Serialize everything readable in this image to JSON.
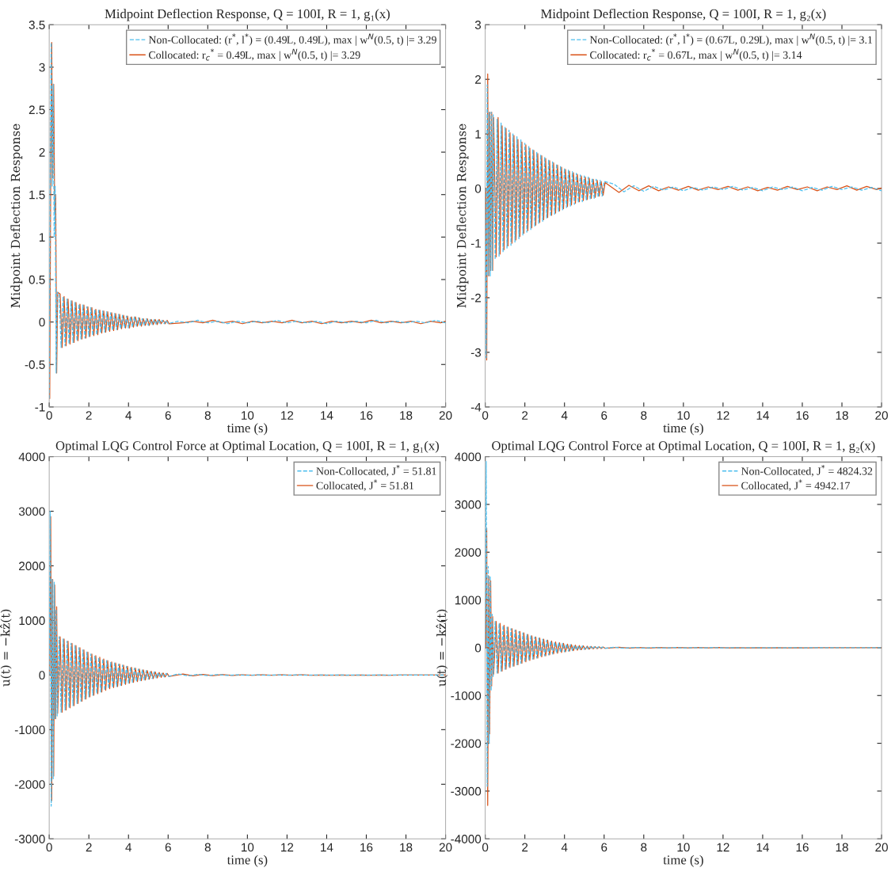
{
  "chart_data": [
    {
      "type": "line",
      "title": "Midpoint Deflection Response, Q = 100I, R = 1, g₁(x)",
      "xlabel": "time (s)",
      "ylabel": "Midpoint Deflection Response",
      "xlim": [
        0,
        20
      ],
      "ylim": [
        -1,
        3.5
      ],
      "xticks": [
        0,
        2,
        4,
        6,
        8,
        10,
        12,
        14,
        16,
        18,
        20
      ],
      "yticks": [
        -1,
        -0.5,
        0,
        0.5,
        1,
        1.5,
        2,
        2.5,
        3,
        3.5
      ],
      "legend": "top right",
      "x": [
        0,
        0.05,
        0.1,
        0.15,
        0.2,
        0.25,
        0.3,
        0.35,
        0.4,
        0.5,
        0.6,
        0.7,
        0.8,
        0.9,
        1,
        1.1,
        1.2,
        1.3,
        1.4,
        1.5,
        1.6,
        1.7,
        1.8,
        1.9,
        2,
        2.1,
        2.2,
        2.3,
        2.4,
        2.5,
        2.6,
        2.7,
        2.8,
        2.9,
        3,
        3.1,
        3.2,
        3.3,
        3.4,
        3.5,
        3.6,
        3.7,
        3.8,
        3.9,
        4,
        4.1,
        4.2,
        4.3,
        4.4,
        4.5,
        4.6,
        4.7,
        4.8,
        4.9,
        5,
        5.1,
        5.2,
        5.3,
        5.4,
        5.5,
        5.6,
        5.7,
        5.8,
        5.9,
        6,
        6.5,
        7,
        7.5,
        8,
        8.5,
        9,
        9.5,
        10,
        10.5,
        11,
        11.5,
        12,
        12.5,
        13,
        13.5,
        14,
        14.5,
        15,
        15.5,
        16,
        16.5,
        17,
        17.5,
        18,
        18.5,
        19,
        19.5,
        20
      ],
      "series": [
        {
          "name": "Non-Collocated: (r$^{*}$, l$^{*}$) = (0.49L, 0.49L), max | w$^{N}$(0.5, t) |= 3.29",
          "color": "#4dbeee",
          "line_style": "dashed",
          "values": [
            -0.9,
            1.7,
            3.29,
            1.6,
            2.8,
            1.0,
            1.6,
            -0.6,
            0.35,
            0.33,
            -0.3,
            0.3,
            -0.28,
            0.27,
            -0.26,
            0.25,
            -0.24,
            0.23,
            -0.22,
            0.21,
            -0.2,
            0.2,
            -0.19,
            0.18,
            -0.17,
            0.17,
            -0.16,
            0.15,
            -0.15,
            0.14,
            -0.13,
            0.13,
            -0.12,
            0.12,
            -0.11,
            0.11,
            -0.1,
            0.1,
            -0.09,
            0.09,
            -0.08,
            0.08,
            -0.07,
            0.07,
            -0.07,
            0.06,
            -0.06,
            0.06,
            -0.05,
            0.05,
            -0.05,
            0.04,
            -0.04,
            0.04,
            -0.04,
            0.03,
            -0.03,
            0.03,
            -0.03,
            0.03,
            -0.02,
            0.02,
            -0.02,
            0.02,
            -0.02,
            0.01,
            -0.01,
            0.02,
            -0.01,
            0.01,
            -0.02,
            0.01,
            -0.01,
            0.01,
            -0.01,
            0.02,
            -0.01,
            0.01,
            -0.01,
            0.01,
            -0.02,
            0.01,
            -0.01,
            0.01,
            -0.01,
            0.02,
            -0.01,
            0.01,
            -0.01,
            0.01,
            -0.01,
            0.02,
            -0.01
          ]
        },
        {
          "name": "Collocated: r$_{c}$$^{*}$ = 0.49L, max | w$^{N}$(0.5, t) |= 3.29",
          "color": "#d95319",
          "line_style": "solid",
          "x": [
            0.025,
            0.075,
            0.125,
            0.175,
            0.225,
            0.275,
            0.325,
            0.375,
            0.425,
            0.55,
            0.65,
            0.75,
            0.85,
            0.95,
            1.05,
            1.15,
            1.25,
            1.35,
            1.45,
            1.55,
            1.65,
            1.75,
            1.85,
            1.95,
            2.05,
            2.15,
            2.25,
            2.35,
            2.45,
            2.55,
            2.65,
            2.75,
            2.85,
            2.95,
            3.05,
            3.15,
            3.25,
            3.35,
            3.45,
            3.55,
            3.65,
            3.75,
            3.85,
            3.95,
            4.05,
            4.15,
            4.25,
            4.35,
            4.45,
            4.55,
            4.65,
            4.75,
            4.85,
            4.95,
            5.05,
            5.15,
            5.25,
            5.35,
            5.45,
            5.55,
            5.65,
            5.75,
            5.85,
            5.95,
            6.05,
            6.75,
            7.25,
            7.75,
            8.25,
            8.75,
            9.25,
            9.75,
            10.25,
            10.75,
            11.25,
            11.75,
            12.25,
            12.75,
            13.25,
            13.75,
            14.25,
            14.75,
            15.25,
            15.75,
            16.25,
            16.75,
            17.25,
            17.75,
            18.25,
            18.75,
            19.25,
            19.75,
            20
          ],
          "values": [
            -0.9,
            1.7,
            3.29,
            1.7,
            2.8,
            1.3,
            1.5,
            -0.6,
            0.35,
            0.33,
            -0.3,
            0.3,
            -0.28,
            0.27,
            -0.26,
            0.25,
            -0.24,
            0.23,
            -0.22,
            0.21,
            -0.2,
            0.2,
            -0.19,
            0.18,
            -0.17,
            0.17,
            -0.16,
            0.15,
            -0.15,
            0.14,
            -0.13,
            0.13,
            -0.12,
            0.12,
            -0.11,
            0.11,
            -0.1,
            0.1,
            -0.09,
            0.09,
            -0.08,
            0.08,
            -0.07,
            0.07,
            -0.07,
            0.06,
            -0.06,
            0.06,
            -0.05,
            0.05,
            -0.05,
            0.04,
            -0.04,
            0.04,
            -0.04,
            0.03,
            -0.03,
            0.03,
            -0.03,
            0.03,
            -0.02,
            0.02,
            -0.02,
            0.02,
            -0.02,
            -0.01,
            0.01,
            -0.01,
            0.02,
            -0.01,
            0.01,
            -0.02,
            0.01,
            -0.01,
            0.01,
            -0.01,
            0.02,
            -0.01,
            0.01,
            -0.02,
            0.01,
            -0.01,
            0.01,
            -0.01,
            0.02,
            -0.01,
            0.01,
            -0.01,
            0.01,
            -0.02,
            0.01,
            -0.01,
            0.01
          ]
        }
      ]
    },
    {
      "type": "line",
      "title": "Midpoint Deflection Response, Q = 100I, R = 1, g₂(x)",
      "xlabel": "time (s)",
      "ylabel": "Midpoint Deflection Response",
      "xlim": [
        0,
        20
      ],
      "ylim": [
        -4,
        3
      ],
      "xticks": [
        0,
        2,
        4,
        6,
        8,
        10,
        12,
        14,
        16,
        18,
        20
      ],
      "yticks": [
        -4,
        -3,
        -2,
        -1,
        0,
        1,
        2,
        3
      ],
      "legend": "top right",
      "x": [
        0,
        0.05,
        0.1,
        0.15,
        0.2,
        0.25,
        0.3,
        0.35,
        0.4,
        0.5,
        0.6,
        0.7,
        0.8,
        0.9,
        1,
        1.1,
        1.2,
        1.3,
        1.4,
        1.5,
        1.6,
        1.7,
        1.8,
        1.9,
        2,
        2.1,
        2.2,
        2.3,
        2.4,
        2.5,
        2.6,
        2.7,
        2.8,
        2.9,
        3,
        3.1,
        3.2,
        3.3,
        3.4,
        3.5,
        3.6,
        3.7,
        3.8,
        3.9,
        4,
        4.1,
        4.2,
        4.3,
        4.4,
        4.5,
        4.6,
        4.7,
        4.8,
        4.9,
        5,
        5.1,
        5.2,
        5.3,
        5.4,
        5.5,
        5.6,
        5.7,
        5.8,
        5.9,
        6,
        6.5,
        7,
        7.5,
        8,
        8.5,
        9,
        9.5,
        10,
        10.5,
        11,
        11.5,
        12,
        12.5,
        13,
        13.5,
        14,
        14.5,
        15,
        15.5,
        16,
        16.5,
        17,
        17.5,
        18,
        18.5,
        19,
        19.5,
        20
      ],
      "series": [
        {
          "name": "Non-Collocated: (r$^{*}$, l$^{*}$) = (0.67L, 0.29L), max | w$^{N}$(0.5, t) |= 3.1",
          "color": "#4dbeee",
          "line_style": "dashed",
          "values": [
            0,
            -3.1,
            1.9,
            -1.6,
            1.4,
            -1.6,
            1.4,
            -1.5,
            1.35,
            -1.3,
            1.27,
            -1.24,
            1.2,
            -1.17,
            1.12,
            -1.1,
            1.07,
            -1.04,
            1.0,
            -0.98,
            0.95,
            -0.92,
            0.89,
            -0.86,
            0.83,
            -0.8,
            0.78,
            -0.75,
            0.72,
            -0.7,
            0.67,
            -0.65,
            0.62,
            -0.6,
            0.58,
            -0.55,
            0.53,
            -0.51,
            0.49,
            -0.47,
            0.45,
            -0.43,
            0.41,
            -0.39,
            0.37,
            -0.35,
            0.34,
            -0.32,
            0.31,
            -0.29,
            0.28,
            -0.26,
            0.25,
            -0.24,
            0.23,
            -0.22,
            0.21,
            -0.2,
            0.19,
            -0.18,
            0.17,
            -0.16,
            0.15,
            -0.14,
            0.13,
            0.08,
            -0.06,
            0.05,
            -0.05,
            0.04,
            -0.03,
            0.03,
            -0.04,
            0.02,
            -0.03,
            0.03,
            -0.02,
            0.04,
            -0.03,
            0.02,
            -0.04,
            0.03,
            -0.02,
            0.03,
            -0.04,
            0.02,
            -0.03,
            0.04,
            -0.02,
            0.03,
            -0.03,
            0.02,
            -0.04
          ]
        },
        {
          "name": "Collocated: r$_{c}$$^{*}$ = 0.67L, max | w$^{N}$(0.5, t) |= 3.14",
          "color": "#d95319",
          "line_style": "solid",
          "x": [
            0.025,
            0.075,
            0.125,
            0.175,
            0.225,
            0.275,
            0.325,
            0.375,
            0.425,
            0.55,
            0.65,
            0.75,
            0.85,
            0.95,
            1.05,
            1.15,
            1.25,
            1.35,
            1.45,
            1.55,
            1.65,
            1.75,
            1.85,
            1.95,
            2.05,
            2.15,
            2.25,
            2.35,
            2.45,
            2.55,
            2.65,
            2.75,
            2.85,
            2.95,
            3.05,
            3.15,
            3.25,
            3.35,
            3.45,
            3.55,
            3.65,
            3.75,
            3.85,
            3.95,
            4.05,
            4.15,
            4.25,
            4.35,
            4.45,
            4.55,
            4.65,
            4.75,
            4.85,
            4.95,
            5.05,
            5.15,
            5.25,
            5.35,
            5.45,
            5.55,
            5.65,
            5.75,
            5.85,
            5.95,
            6.05,
            6.75,
            7.25,
            7.75,
            8.25,
            8.75,
            9.25,
            9.75,
            10.25,
            10.75,
            11.25,
            11.75,
            12.25,
            12.75,
            13.25,
            13.75,
            14.25,
            14.75,
            15.25,
            15.75,
            16.25,
            16.75,
            17.25,
            17.75,
            18.25,
            18.75,
            19.25,
            19.75,
            20
          ],
          "values": [
            0,
            -3.14,
            2.1,
            -1.6,
            1.4,
            -1.5,
            1.4,
            -1.5,
            1.3,
            -1.25,
            1.3,
            -1.2,
            1.15,
            -1.12,
            1.1,
            -1.05,
            1.02,
            -1.0,
            0.97,
            -0.94,
            0.9,
            -0.88,
            0.85,
            -0.82,
            0.8,
            -0.77,
            0.74,
            -0.72,
            0.7,
            -0.67,
            0.64,
            -0.62,
            0.6,
            -0.57,
            0.55,
            -0.53,
            0.51,
            -0.49,
            0.47,
            -0.45,
            0.43,
            -0.41,
            0.39,
            -0.37,
            0.35,
            -0.33,
            0.32,
            -0.3,
            0.29,
            -0.27,
            0.26,
            -0.24,
            0.23,
            -0.22,
            0.21,
            -0.2,
            0.19,
            -0.18,
            0.17,
            -0.16,
            0.15,
            -0.14,
            0.13,
            -0.12,
            0.11,
            -0.07,
            0.06,
            -0.04,
            0.05,
            -0.04,
            0.03,
            -0.03,
            0.04,
            -0.03,
            0.03,
            -0.02,
            0.04,
            -0.03,
            0.03,
            -0.04,
            0.02,
            -0.03,
            0.04,
            -0.02,
            0.03,
            -0.04,
            0.03,
            -0.02,
            0.05,
            -0.03,
            0.04,
            -0.02,
            0.01
          ]
        }
      ]
    },
    {
      "type": "line",
      "title": "Optimal LQG Control Force at Optimal Location, Q = 100I, R = 1, g₁(x)",
      "xlabel": "time (s)",
      "ylabel": "u(t) = −kẑ(t)",
      "xlim": [
        0,
        20
      ],
      "ylim": [
        -3000,
        4000
      ],
      "xticks": [
        0,
        2,
        4,
        6,
        8,
        10,
        12,
        14,
        16,
        18,
        20
      ],
      "yticks": [
        -3000,
        -2000,
        -1000,
        0,
        1000,
        2000,
        3000,
        4000
      ],
      "legend": "top right",
      "x": [
        0,
        0.05,
        0.1,
        0.15,
        0.2,
        0.25,
        0.3,
        0.35,
        0.4,
        0.5,
        0.6,
        0.7,
        0.8,
        0.9,
        1,
        1.1,
        1.2,
        1.3,
        1.4,
        1.5,
        1.6,
        1.7,
        1.8,
        1.9,
        2,
        2.1,
        2.2,
        2.3,
        2.4,
        2.5,
        2.6,
        2.7,
        2.8,
        2.9,
        3,
        3.1,
        3.2,
        3.3,
        3.4,
        3.5,
        3.6,
        3.7,
        3.8,
        3.9,
        4,
        4.1,
        4.2,
        4.3,
        4.4,
        4.5,
        4.6,
        4.7,
        4.8,
        4.9,
        5,
        5.1,
        5.2,
        5.3,
        5.4,
        5.5,
        5.6,
        5.7,
        5.8,
        5.9,
        6,
        6.5,
        7,
        7.5,
        8,
        8.5,
        9,
        9.5,
        10,
        10.5,
        11,
        11.5,
        12,
        12.5,
        13,
        13.5,
        14,
        14.5,
        15,
        15.5,
        16,
        16.5,
        17,
        17.5,
        18,
        18.5,
        19,
        19.5,
        20
      ],
      "series": [
        {
          "name": "Non-Collocated, J$^{*}$ = 51.81",
          "color": "#4dbeee",
          "line_style": "dashed",
          "values": [
            0,
            3000,
            -2400,
            1750,
            -1900,
            1700,
            -800,
            1200,
            -750,
            700,
            -680,
            660,
            -640,
            620,
            -600,
            580,
            -560,
            540,
            -520,
            500,
            -480,
            460,
            -440,
            420,
            -400,
            385,
            -370,
            355,
            -340,
            325,
            -310,
            295,
            -280,
            265,
            -250,
            240,
            -230,
            220,
            -210,
            200,
            -190,
            180,
            -170,
            160,
            -150,
            142,
            -134,
            126,
            -118,
            110,
            -103,
            96,
            -89,
            82,
            -76,
            70,
            -64,
            58,
            -52,
            47,
            -42,
            38,
            -34,
            30,
            -26,
            20,
            -15,
            12,
            -10,
            8,
            -6,
            5,
            -5,
            4,
            -4,
            3,
            -3,
            3,
            -3,
            2,
            -2,
            2,
            -2,
            2,
            -2,
            2,
            -2,
            1,
            -1,
            1,
            -1,
            1,
            -1
          ]
        },
        {
          "name": "Collocated, J$^{*}$ = 51.81",
          "color": "#d95319",
          "line_style": "solid",
          "x": [
            0.025,
            0.075,
            0.125,
            0.175,
            0.225,
            0.275,
            0.325,
            0.375,
            0.425,
            0.55,
            0.65,
            0.75,
            0.85,
            0.95,
            1.05,
            1.15,
            1.25,
            1.35,
            1.45,
            1.55,
            1.65,
            1.75,
            1.85,
            1.95,
            2.05,
            2.15,
            2.25,
            2.35,
            2.45,
            2.55,
            2.65,
            2.75,
            2.85,
            2.95,
            3.05,
            3.15,
            3.25,
            3.35,
            3.45,
            3.55,
            3.65,
            3.75,
            3.85,
            3.95,
            4.05,
            4.15,
            4.25,
            4.35,
            4.45,
            4.55,
            4.65,
            4.75,
            4.85,
            4.95,
            5.05,
            5.15,
            5.25,
            5.35,
            5.45,
            5.55,
            5.65,
            5.75,
            5.85,
            5.95,
            6.05,
            6.75,
            7.25,
            7.75,
            8.25,
            8.75,
            9.25,
            9.75,
            10.25,
            10.75,
            11.25,
            11.75,
            12.25,
            12.75,
            13.25,
            13.75,
            14.25,
            14.75,
            15.25,
            15.75,
            16.25,
            16.75,
            17.25,
            17.75,
            18.25,
            18.75,
            19.25,
            19.75,
            20
          ],
          "values": [
            0,
            2900,
            -2300,
            1750,
            -1850,
            1650,
            -800,
            1250,
            -700,
            700,
            -680,
            660,
            -640,
            620,
            -600,
            580,
            -560,
            540,
            -520,
            500,
            -480,
            460,
            -440,
            420,
            -400,
            385,
            -370,
            355,
            -340,
            325,
            -310,
            295,
            -280,
            265,
            -250,
            240,
            -230,
            220,
            -210,
            200,
            -190,
            180,
            -170,
            160,
            -150,
            142,
            -134,
            126,
            -118,
            110,
            -103,
            96,
            -89,
            82,
            -76,
            70,
            -64,
            58,
            -52,
            47,
            -42,
            38,
            -34,
            30,
            -26,
            20,
            -15,
            12,
            -10,
            8,
            -6,
            5,
            -5,
            4,
            -4,
            3,
            -3,
            3,
            -3,
            2,
            -2,
            2,
            -2,
            2,
            -2,
            2,
            -2,
            1,
            -1,
            1,
            -1,
            1,
            -1
          ]
        }
      ]
    },
    {
      "type": "line",
      "title": "Optimal LQG Control Force at Optimal Location, Q = 100I, R = 1, g₂(x)",
      "xlabel": "time (s)",
      "ylabel": "u(t) = −kẑ(t)",
      "xlim": [
        0,
        20
      ],
      "ylim": [
        -4000,
        4000
      ],
      "xticks": [
        0,
        2,
        4,
        6,
        8,
        10,
        12,
        14,
        16,
        18,
        20
      ],
      "yticks": [
        -4000,
        -3000,
        -2000,
        -1000,
        0,
        1000,
        2000,
        3000,
        4000
      ],
      "legend": "top right",
      "x": [
        0,
        0.05,
        0.1,
        0.15,
        0.2,
        0.25,
        0.3,
        0.35,
        0.4,
        0.5,
        0.6,
        0.7,
        0.8,
        0.9,
        1,
        1.1,
        1.2,
        1.3,
        1.4,
        1.5,
        1.6,
        1.7,
        1.8,
        1.9,
        2,
        2.1,
        2.2,
        2.3,
        2.4,
        2.5,
        2.6,
        2.7,
        2.8,
        2.9,
        3,
        3.1,
        3.2,
        3.3,
        3.4,
        3.5,
        3.6,
        3.7,
        3.8,
        3.9,
        4,
        4.1,
        4.2,
        4.3,
        4.4,
        4.5,
        4.6,
        4.7,
        4.8,
        4.9,
        5,
        5.1,
        5.2,
        5.3,
        5.4,
        5.5,
        5.6,
        5.7,
        5.8,
        5.9,
        6,
        6.5,
        7,
        7.5,
        8,
        8.5,
        9,
        9.5,
        10,
        10.5,
        11,
        11.5,
        12,
        12.5,
        13,
        13.5,
        14,
        14.5,
        15,
        15.5,
        16,
        16.5,
        17,
        17.5,
        18,
        18.5,
        19,
        19.5,
        20
      ],
      "series": [
        {
          "name": "Non-Collocated, J$^{*}$ = 4824.32",
          "color": "#4dbeee",
          "line_style": "dashed",
          "values": [
            0,
            3900,
            -2900,
            1700,
            -2000,
            1500,
            -900,
            700,
            -600,
            550,
            -530,
            510,
            -490,
            470,
            -450,
            430,
            -415,
            400,
            -385,
            370,
            -355,
            340,
            -325,
            310,
            -295,
            280,
            -265,
            250,
            -238,
            226,
            -214,
            202,
            -190,
            180,
            -170,
            160,
            -150,
            140,
            -130,
            122,
            -114,
            106,
            -98,
            91,
            -84,
            77,
            -71,
            65,
            -60,
            55,
            -50,
            46,
            -42,
            38,
            -35,
            32,
            -29,
            26,
            -24,
            22,
            -20,
            18,
            -16,
            14,
            -12,
            10,
            -8,
            7,
            -6,
            5,
            -5,
            4,
            -4,
            3,
            -3,
            3,
            -3,
            2,
            -2,
            2,
            -2,
            2,
            -2,
            2,
            -2,
            1,
            -1,
            1,
            -1,
            1,
            -1,
            1,
            -1
          ]
        },
        {
          "name": "Collocated, J$^{*}$ = 4942.17",
          "color": "#d95319",
          "line_style": "solid",
          "x": [
            0.025,
            0.075,
            0.125,
            0.175,
            0.225,
            0.275,
            0.325,
            0.375,
            0.425,
            0.55,
            0.65,
            0.75,
            0.85,
            0.95,
            1.05,
            1.15,
            1.25,
            1.35,
            1.45,
            1.55,
            1.65,
            1.75,
            1.85,
            1.95,
            2.05,
            2.15,
            2.25,
            2.35,
            2.45,
            2.55,
            2.65,
            2.75,
            2.85,
            2.95,
            3.05,
            3.15,
            3.25,
            3.35,
            3.45,
            3.55,
            3.65,
            3.75,
            3.85,
            3.95,
            4.05,
            4.15,
            4.25,
            4.35,
            4.45,
            4.55,
            4.65,
            4.75,
            4.85,
            4.95,
            5.05,
            5.15,
            5.25,
            5.35,
            5.45,
            5.55,
            5.65,
            5.75,
            5.85,
            5.95,
            6.05,
            6.75,
            7.25,
            7.75,
            8.25,
            8.75,
            9.25,
            9.75,
            10.25,
            10.75,
            11.25,
            11.75,
            12.25,
            12.75,
            13.25,
            13.75,
            14.25,
            14.75,
            15.25,
            15.75,
            16.25,
            16.75,
            17.25,
            17.75,
            18.25,
            18.75,
            19.25,
            19.75,
            20
          ],
          "values": [
            0,
            2500,
            -3300,
            1500,
            -1800,
            1400,
            -800,
            650,
            -550,
            550,
            -530,
            510,
            -490,
            470,
            -450,
            430,
            -415,
            400,
            -385,
            370,
            -355,
            340,
            -325,
            310,
            -295,
            280,
            -265,
            250,
            -238,
            226,
            -214,
            202,
            -190,
            180,
            -170,
            160,
            -150,
            140,
            -130,
            122,
            -114,
            106,
            -98,
            91,
            -84,
            77,
            -71,
            65,
            -60,
            55,
            -50,
            46,
            -42,
            38,
            -35,
            32,
            -29,
            26,
            -24,
            22,
            -20,
            18,
            -16,
            14,
            -12,
            10,
            -8,
            7,
            -6,
            5,
            -5,
            4,
            -4,
            3,
            -3,
            3,
            -3,
            2,
            -2,
            2,
            -2,
            2,
            -2,
            2,
            -2,
            1,
            -1,
            1,
            -1,
            1,
            -1,
            1,
            -1
          ]
        }
      ]
    }
  ]
}
